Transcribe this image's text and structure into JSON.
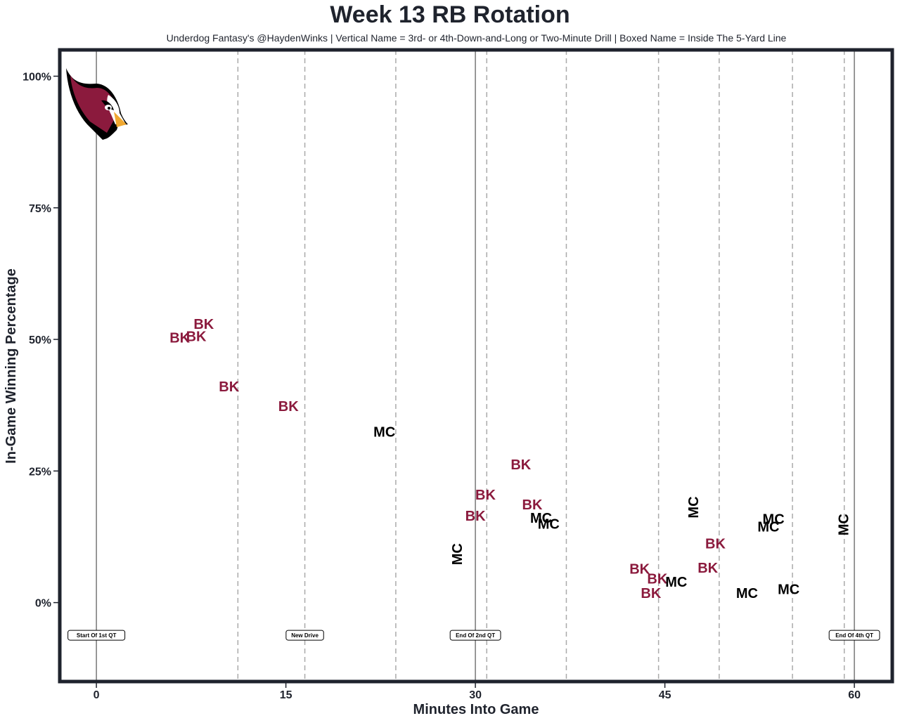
{
  "chart_data": {
    "type": "scatter",
    "title": "Week 13 RB Rotation",
    "subtitle": "Underdog Fantasy's @HaydenWinks | Vertical Name = 3rd- or 4th-Down-and-Long or Two-Minute Drill | Boxed Name = Inside The 5-Yard Line",
    "xlabel": "Minutes Into Game",
    "ylabel": "In-Game Winning Percentage",
    "xlim": [
      -2.9,
      63
    ],
    "ylim": [
      -15,
      105
    ],
    "xticks": [
      {
        "value": 0,
        "label": "0"
      },
      {
        "value": 15,
        "label": "15"
      },
      {
        "value": 30,
        "label": "30"
      },
      {
        "value": 45,
        "label": "45"
      },
      {
        "value": 60,
        "label": "60"
      }
    ],
    "yticks": [
      {
        "value": 0,
        "label": "0%"
      },
      {
        "value": 25,
        "label": "25%"
      },
      {
        "value": 50,
        "label": "50%"
      },
      {
        "value": 75,
        "label": "75%"
      },
      {
        "value": 100,
        "label": "100%"
      }
    ],
    "solid_lines": [
      0,
      30,
      60
    ],
    "dashed_lines": [
      11.2,
      16.5,
      23.7,
      30.9,
      37.2,
      44.5,
      49.3,
      55.1,
      59.2
    ],
    "annotations": [
      {
        "label": "Start Of 1st QT",
        "x": 0
      },
      {
        "label": "New Drive",
        "x": 16.5
      },
      {
        "label": "End Of 2nd QT",
        "x": 30
      },
      {
        "label": "End Of 4th QT",
        "x": 60
      }
    ],
    "colors": {
      "BK": "#8b1a3d",
      "MC": "#000000",
      "frame": "#1f232d"
    },
    "logo": "cardinals-logo",
    "points": [
      {
        "label": "BK",
        "x": 6.6,
        "y": 50.2,
        "vertical": false
      },
      {
        "label": "BK",
        "x": 7.9,
        "y": 50.5,
        "vertical": false
      },
      {
        "label": "BK",
        "x": 8.5,
        "y": 52.8,
        "vertical": false
      },
      {
        "label": "BK",
        "x": 10.5,
        "y": 40.9,
        "vertical": false
      },
      {
        "label": "BK",
        "x": 15.2,
        "y": 37.2,
        "vertical": false
      },
      {
        "label": "MC",
        "x": 22.8,
        "y": 32.3,
        "vertical": false
      },
      {
        "label": "MC",
        "x": 28.6,
        "y": 9.2,
        "vertical": true
      },
      {
        "label": "BK",
        "x": 30.0,
        "y": 16.4,
        "vertical": false
      },
      {
        "label": "BK",
        "x": 30.8,
        "y": 20.4,
        "vertical": false
      },
      {
        "label": "BK",
        "x": 33.6,
        "y": 26.1,
        "vertical": false
      },
      {
        "label": "BK",
        "x": 34.5,
        "y": 18.5,
        "vertical": false
      },
      {
        "label": "MC",
        "x": 35.2,
        "y": 16.0,
        "vertical": false
      },
      {
        "label": "MC",
        "x": 35.8,
        "y": 14.8,
        "vertical": false
      },
      {
        "label": "BK",
        "x": 43.0,
        "y": 6.3,
        "vertical": false
      },
      {
        "label": "BK",
        "x": 44.4,
        "y": 4.4,
        "vertical": false
      },
      {
        "label": "BK",
        "x": 43.9,
        "y": 1.7,
        "vertical": false
      },
      {
        "label": "MC",
        "x": 45.9,
        "y": 3.8,
        "vertical": false
      },
      {
        "label": "MC",
        "x": 47.3,
        "y": 18.1,
        "vertical": true
      },
      {
        "label": "BK",
        "x": 48.4,
        "y": 6.5,
        "vertical": false
      },
      {
        "label": "BK",
        "x": 49.0,
        "y": 11.1,
        "vertical": false
      },
      {
        "label": "MC",
        "x": 51.5,
        "y": 1.7,
        "vertical": false
      },
      {
        "label": "MC",
        "x": 53.2,
        "y": 14.3,
        "vertical": false
      },
      {
        "label": "MC",
        "x": 53.6,
        "y": 15.8,
        "vertical": false
      },
      {
        "label": "MC",
        "x": 54.8,
        "y": 2.4,
        "vertical": false
      },
      {
        "label": "MC",
        "x": 59.2,
        "y": 14.8,
        "vertical": true
      }
    ]
  }
}
